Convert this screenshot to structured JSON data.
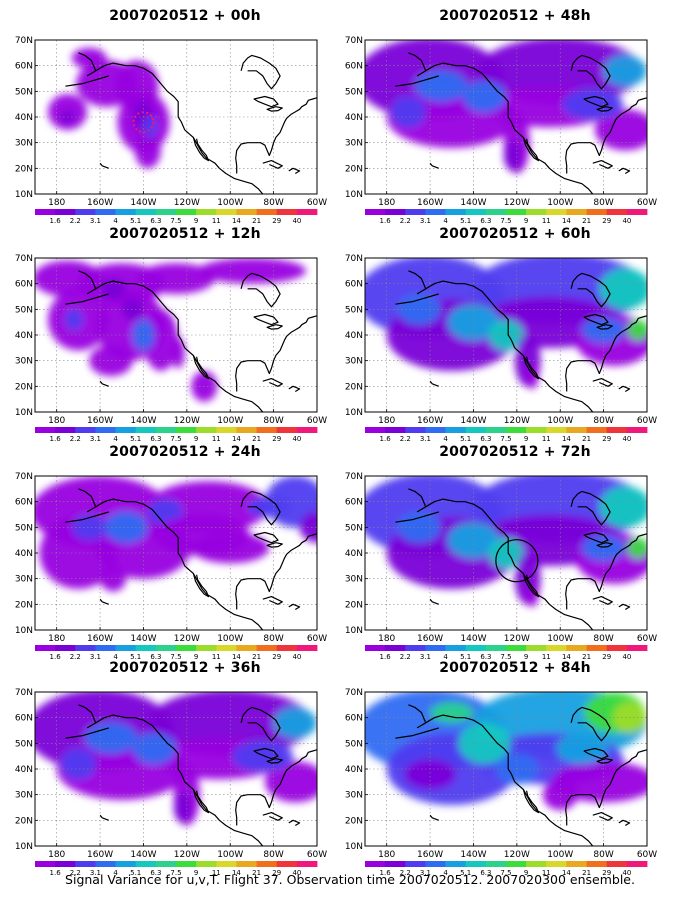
{
  "panels": [
    {
      "title": "2007020512 + 00h",
      "field_level": 1
    },
    {
      "title": "2007020512 + 48h",
      "field_level": 4
    },
    {
      "title": "2007020512 + 12h",
      "field_level": 2
    },
    {
      "title": "2007020512 + 60h",
      "field_level": 5
    },
    {
      "title": "2007020512 + 24h",
      "field_level": 3
    },
    {
      "title": "2007020512 + 72h",
      "field_level": 5
    },
    {
      "title": "2007020512 + 36h",
      "field_level": 4
    },
    {
      "title": "2007020512 + 84h",
      "field_level": 6
    }
  ],
  "lat_labels": [
    "70N",
    "60N",
    "50N",
    "40N",
    "30N",
    "20N",
    "10N"
  ],
  "lon_labels": [
    "180",
    "160W",
    "140W",
    "120W",
    "100W",
    "80W",
    "60W"
  ],
  "colorbar": {
    "labels": [
      "1.6",
      "2.2",
      "3.1",
      "4",
      "5.1",
      "6.3",
      "7.5",
      "9",
      "11",
      "14",
      "21",
      "29",
      "40"
    ],
    "colors": [
      "#9800e0",
      "#7a00d8",
      "#4f3cf0",
      "#2f6cf2",
      "#16a0e0",
      "#14c8c0",
      "#2cd28c",
      "#3cdc3c",
      "#9cdc2a",
      "#d8d82a",
      "#e8a820",
      "#f06e1e",
      "#f0343c",
      "#f0187a"
    ]
  },
  "caption": "Signal Variance for u,v,T. Flight 37. Observation time 2007020512. 2007020300 ensemble."
}
